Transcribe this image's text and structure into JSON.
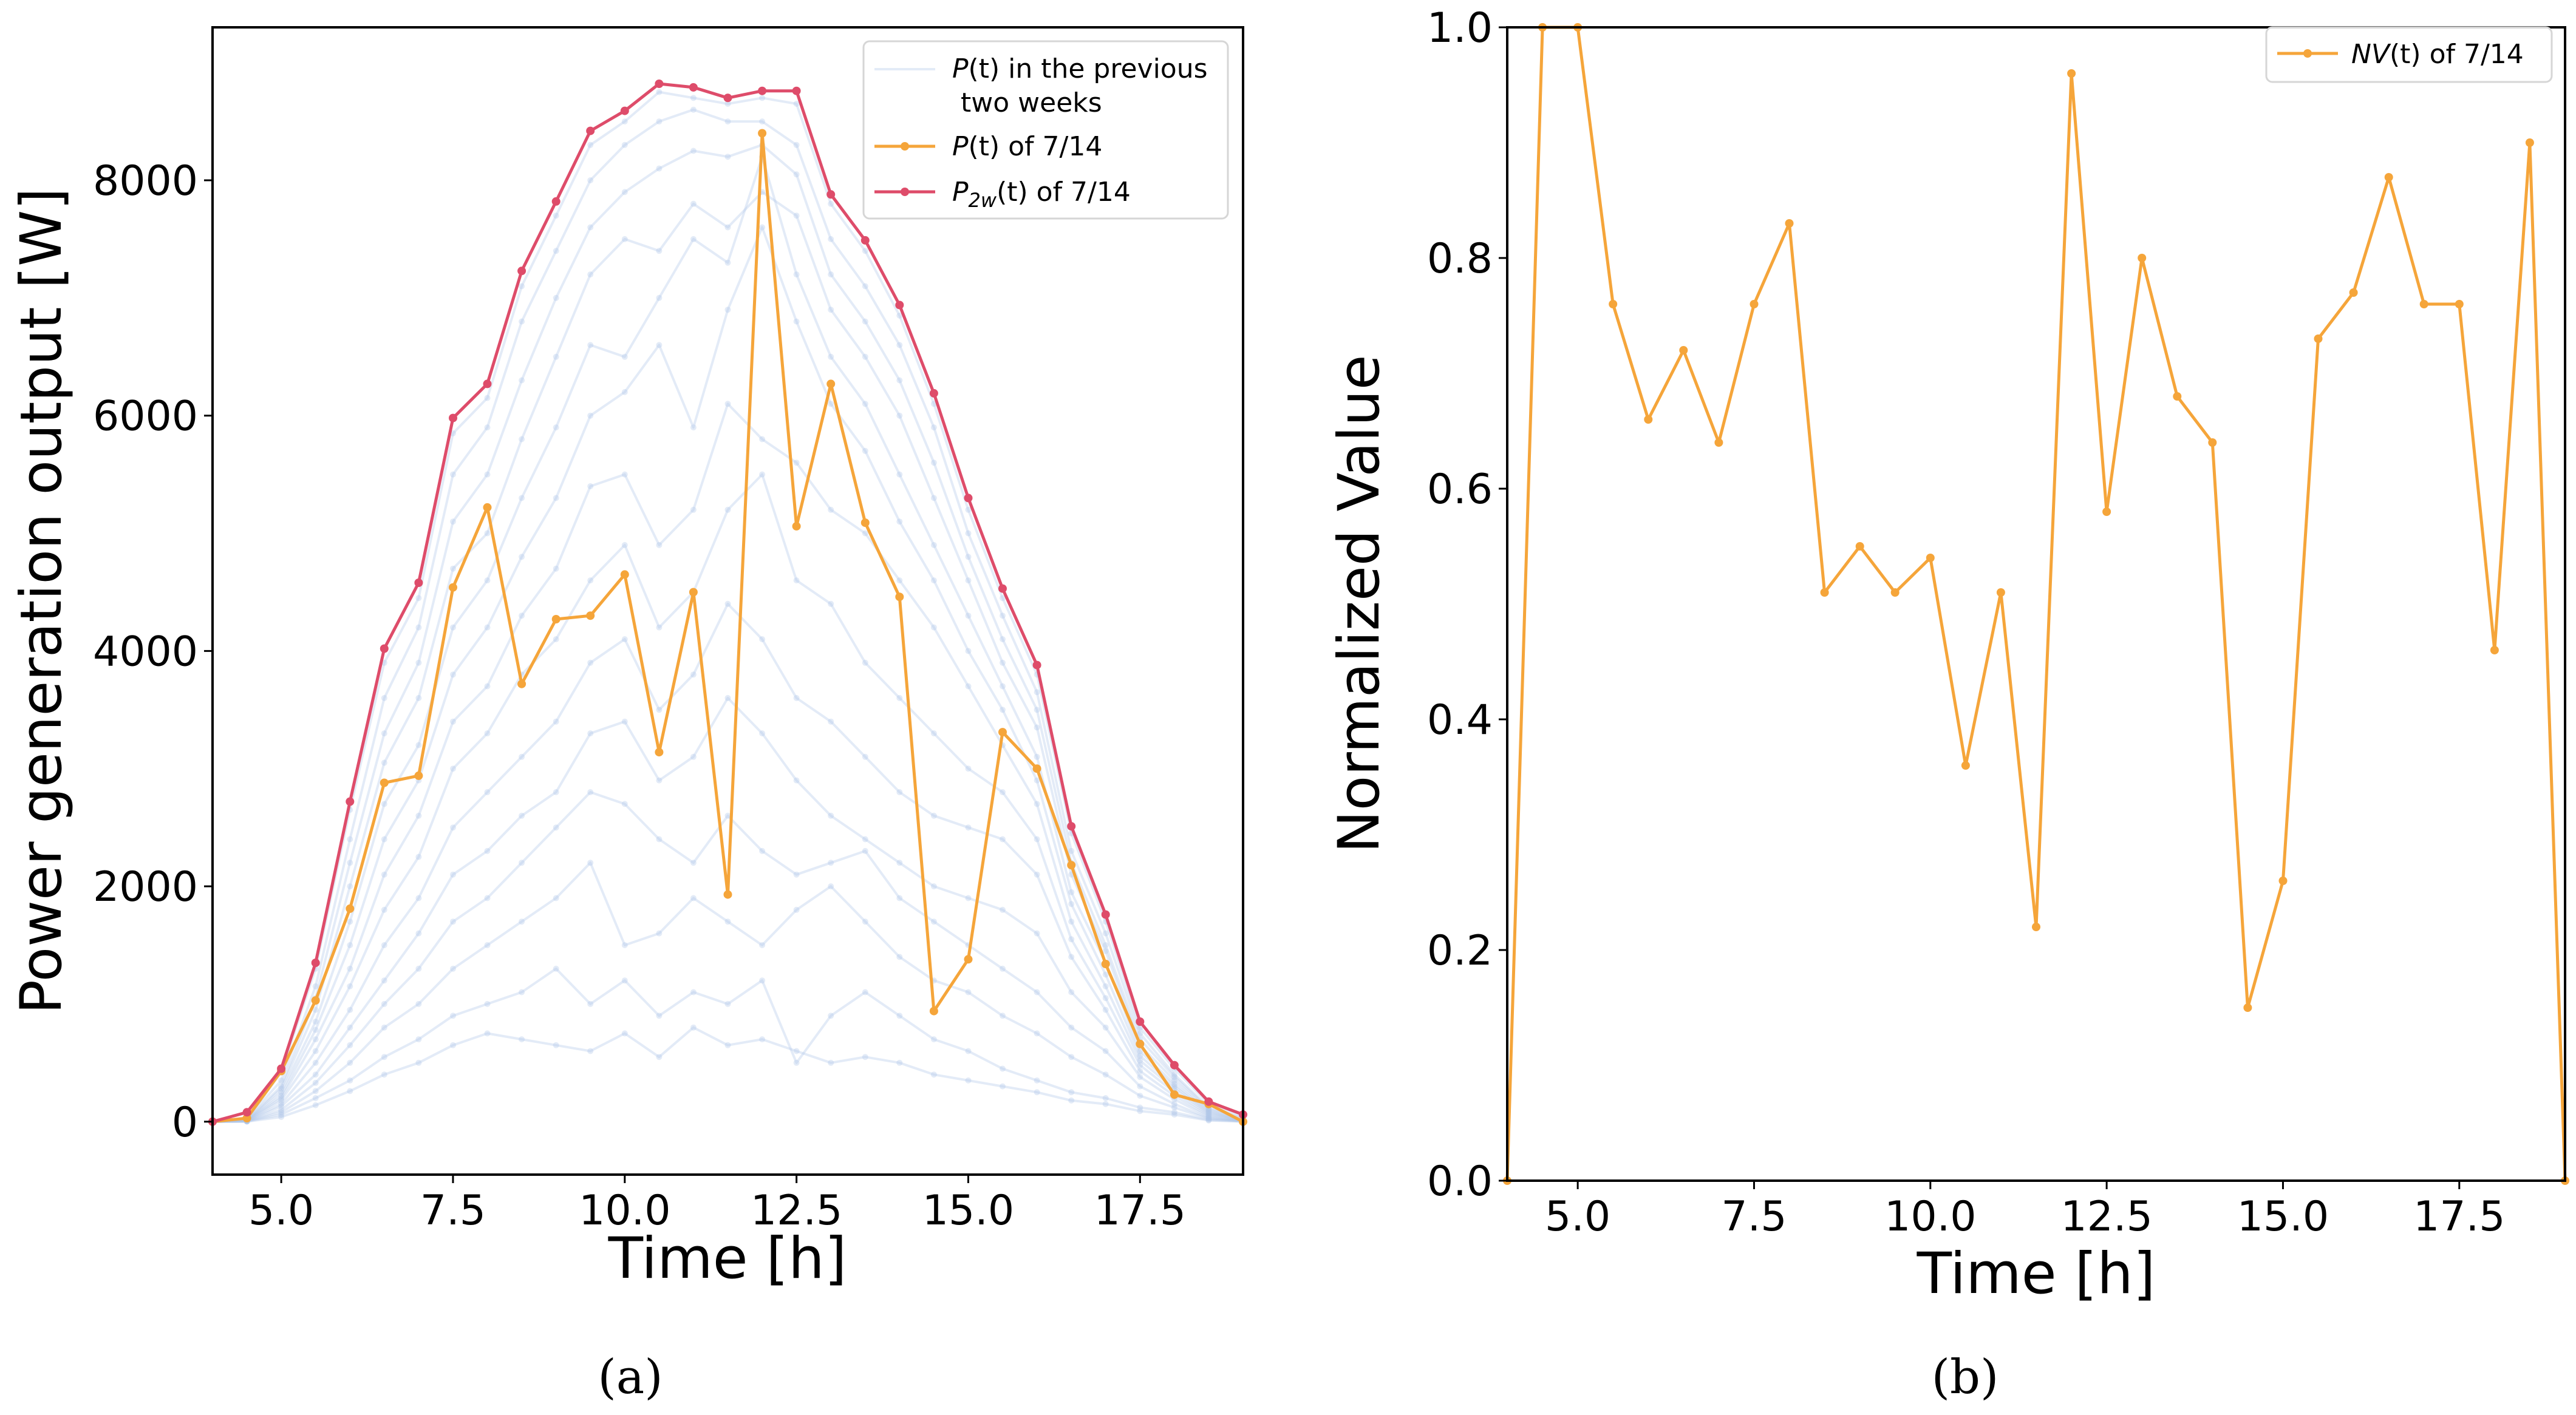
{
  "colors": {
    "history": "#aec7e8",
    "today": "#f5a53a",
    "envelope": "#de4c6a",
    "nv": "#f5a53a"
  },
  "chart_data": [
    {
      "type": "line",
      "panel": "(a)",
      "xlabel": "Time [h]",
      "ylabel": "Power generation output [W]",
      "xlim": [
        4.0,
        19.0
      ],
      "ylim": [
        -450,
        9300
      ],
      "xticks": [
        5.0,
        7.5,
        10.0,
        12.5,
        15.0,
        17.5
      ],
      "xtick_labels": [
        "5.0",
        "7.5",
        "10.0",
        "12.5",
        "15.0",
        "17.5"
      ],
      "yticks": [
        0,
        2000,
        4000,
        6000,
        8000
      ],
      "ytick_labels": [
        "0",
        "2000",
        "4000",
        "6000",
        "8000"
      ],
      "legend_position": "top-right",
      "x": [
        4.0,
        4.5,
        5.0,
        5.5,
        6.0,
        6.5,
        7.0,
        7.5,
        8.0,
        8.5,
        9.0,
        9.5,
        10.0,
        10.5,
        11.0,
        11.5,
        12.0,
        12.5,
        13.0,
        13.5,
        14.0,
        14.5,
        15.0,
        15.5,
        16.0,
        16.5,
        17.0,
        17.5,
        18.0,
        18.5,
        19.0
      ],
      "series": [
        {
          "name": "P2w",
          "legend_main": "P",
          "legend_sub": "2w",
          "legend_rest": "(t) of 7/14",
          "role": "envelope",
          "values": [
            0,
            80,
            450,
            1350,
            2720,
            4020,
            4580,
            5980,
            6270,
            7230,
            7820,
            8420,
            8590,
            8820,
            8790,
            8700,
            8760,
            8760,
            7880,
            7490,
            6940,
            6190,
            5300,
            4530,
            3880,
            2510,
            1760,
            850,
            480,
            170,
            60
          ]
        },
        {
          "name": "P today",
          "legend_main": "P",
          "legend_rest": "(t) of 7/14",
          "role": "today",
          "values": [
            0,
            30,
            430,
            1030,
            1810,
            2880,
            2940,
            4540,
            5220,
            3720,
            4270,
            4300,
            4650,
            3140,
            4500,
            1930,
            8400,
            5060,
            6270,
            5090,
            4460,
            940,
            1380,
            3310,
            3000,
            2180,
            1340,
            660,
            230,
            150,
            0
          ]
        }
      ],
      "history": {
        "legend_main": "P",
        "legend_rest": "(t) in the previous",
        "legend_line2": "two weeks",
        "days": [
          [
            0,
            20,
            420,
            1300,
            2650,
            3900,
            4450,
            5850,
            6150,
            7100,
            7700,
            8300,
            8500,
            8750,
            8700,
            8650,
            8700,
            8650,
            7800,
            7400,
            6850,
            6100,
            5200,
            4450,
            3800,
            2450,
            1700,
            800,
            450,
            150,
            40
          ],
          [
            0,
            20,
            350,
            1150,
            2400,
            3600,
            4200,
            5500,
            5900,
            6800,
            7400,
            8000,
            8300,
            8500,
            8600,
            8500,
            8500,
            8300,
            7500,
            7100,
            6600,
            5900,
            5000,
            4300,
            3650,
            2300,
            1600,
            750,
            400,
            120,
            30
          ],
          [
            0,
            15,
            300,
            1050,
            2200,
            3300,
            3900,
            5100,
            5500,
            6300,
            7000,
            7600,
            7900,
            8100,
            8250,
            8200,
            8300,
            8050,
            7200,
            6800,
            6300,
            5600,
            4800,
            4100,
            3500,
            2200,
            1500,
            700,
            380,
            110,
            20
          ],
          [
            0,
            10,
            280,
            950,
            2000,
            3050,
            3600,
            4700,
            5000,
            5800,
            6500,
            7200,
            7500,
            7400,
            7800,
            7600,
            7900,
            7700,
            6900,
            6500,
            6000,
            5300,
            4600,
            3900,
            3350,
            2100,
            1450,
            650,
            350,
            100,
            15
          ],
          [
            0,
            10,
            250,
            850,
            1700,
            2700,
            3200,
            4200,
            4600,
            5300,
            5900,
            6600,
            6500,
            7000,
            7500,
            7300,
            8200,
            7200,
            6500,
            6100,
            5500,
            4900,
            4300,
            3700,
            3100,
            1950,
            1350,
            600,
            320,
            90,
            10
          ],
          [
            0,
            10,
            220,
            780,
            1500,
            2400,
            2900,
            3800,
            4200,
            4800,
            5300,
            6000,
            6200,
            6600,
            5900,
            6900,
            7600,
            6800,
            6100,
            5700,
            5100,
            4600,
            4000,
            3500,
            2900,
            1850,
            1250,
            560,
            300,
            80,
            10
          ],
          [
            0,
            8,
            200,
            700,
            1300,
            2100,
            2600,
            3400,
            3700,
            4300,
            4700,
            5400,
            5500,
            4900,
            5200,
            6100,
            5800,
            5600,
            5200,
            5000,
            4600,
            4200,
            3700,
            3200,
            2700,
            1700,
            1150,
            520,
            280,
            70,
            10
          ],
          [
            0,
            6,
            180,
            600,
            1150,
            1800,
            2250,
            3000,
            3300,
            3800,
            4100,
            4600,
            4900,
            4200,
            4500,
            5200,
            5500,
            4600,
            4400,
            3900,
            3600,
            3300,
            3000,
            2800,
            2400,
            1550,
            1050,
            480,
            250,
            60,
            8
          ],
          [
            0,
            5,
            150,
            500,
            950,
            1500,
            1900,
            2500,
            2800,
            3100,
            3400,
            3900,
            4100,
            3500,
            3800,
            4400,
            4100,
            3600,
            3400,
            3100,
            2800,
            2600,
            2500,
            2400,
            2100,
            1400,
            950,
            430,
            220,
            50,
            6
          ],
          [
            0,
            5,
            130,
            400,
            800,
            1200,
            1600,
            2100,
            2300,
            2600,
            2800,
            3300,
            3400,
            2900,
            3100,
            3600,
            3300,
            2900,
            2600,
            2400,
            2200,
            2000,
            1900,
            1800,
            1600,
            1100,
            800,
            380,
            190,
            40,
            5
          ],
          [
            0,
            4,
            100,
            330,
            650,
            1000,
            1300,
            1700,
            1900,
            2200,
            2500,
            2800,
            2700,
            2400,
            2200,
            2600,
            2300,
            2100,
            2200,
            2300,
            1900,
            1700,
            1500,
            1300,
            1100,
            800,
            600,
            300,
            150,
            30,
            4
          ],
          [
            0,
            3,
            80,
            260,
            500,
            800,
            1000,
            1300,
            1500,
            1700,
            1900,
            2200,
            1500,
            1600,
            1900,
            1700,
            1500,
            1800,
            2000,
            1700,
            1400,
            1200,
            1100,
            900,
            750,
            550,
            400,
            220,
            120,
            25,
            3
          ],
          [
            0,
            2,
            60,
            200,
            350,
            550,
            700,
            900,
            1000,
            1100,
            1300,
            1000,
            1200,
            900,
            1100,
            1000,
            1200,
            500,
            900,
            1100,
            900,
            700,
            600,
            450,
            350,
            250,
            200,
            120,
            80,
            15,
            2
          ],
          [
            0,
            1,
            40,
            140,
            260,
            400,
            500,
            650,
            750,
            700,
            650,
            600,
            750,
            550,
            800,
            650,
            700,
            600,
            500,
            550,
            500,
            400,
            350,
            300,
            250,
            180,
            150,
            90,
            60,
            10,
            1
          ]
        ]
      }
    },
    {
      "type": "line",
      "panel": "(b)",
      "xlabel": "Time [h]",
      "ylabel": "Normalized Value",
      "xlim": [
        4.0,
        19.0
      ],
      "ylim": [
        0.0,
        1.0
      ],
      "xticks": [
        5.0,
        7.5,
        10.0,
        12.5,
        15.0,
        17.5
      ],
      "xtick_labels": [
        "5.0",
        "7.5",
        "10.0",
        "12.5",
        "15.0",
        "17.5"
      ],
      "yticks": [
        0.0,
        0.2,
        0.4,
        0.6,
        0.8,
        1.0
      ],
      "ytick_labels": [
        "0.0",
        "0.2",
        "0.4",
        "0.6",
        "0.8",
        "1.0"
      ],
      "legend_position": "top-right",
      "x": [
        4.0,
        4.5,
        5.0,
        5.5,
        6.0,
        6.5,
        7.0,
        7.5,
        8.0,
        8.5,
        9.0,
        9.5,
        10.0,
        10.5,
        11.0,
        11.5,
        12.0,
        12.5,
        13.0,
        13.5,
        14.0,
        14.5,
        15.0,
        15.5,
        16.0,
        16.5,
        17.0,
        17.5,
        18.0,
        18.5,
        19.0
      ],
      "series": [
        {
          "name": "NV(t) of 7/14",
          "legend_main": "NV",
          "legend_rest": "(t) of 7/14",
          "values": [
            0.0,
            1.0,
            1.0,
            0.76,
            0.66,
            0.72,
            0.64,
            0.76,
            0.83,
            0.51,
            0.55,
            0.51,
            0.54,
            0.36,
            0.51,
            0.22,
            0.96,
            0.58,
            0.8,
            0.68,
            0.64,
            0.15,
            0.26,
            0.73,
            0.77,
            0.87,
            0.76,
            0.76,
            0.46,
            0.9,
            0.0
          ]
        }
      ]
    }
  ]
}
